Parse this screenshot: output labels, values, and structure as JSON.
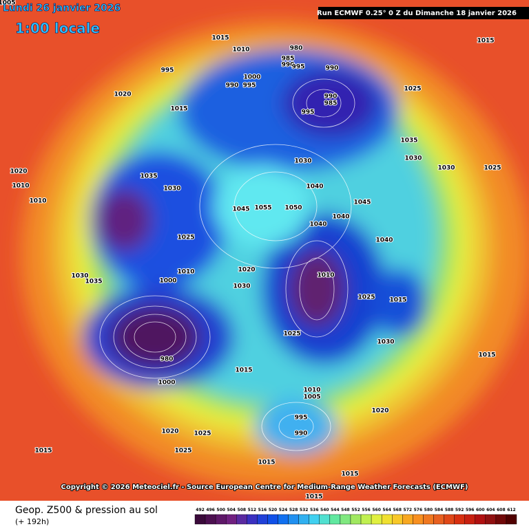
{
  "header": {
    "date": "Lundi 26 janvier 2026",
    "time": "1:00 locale",
    "run": "Run ECMWF 0.25° 0 Z du Dimanche 18 janvier 2026"
  },
  "copyright": "Copyright © 2026 Meteociel.fr - Source European Centre for Medium-Range Weather Forecasts (ECMWF)",
  "footer": {
    "title": "Geop. Z500 & pression au sol",
    "lead": "(+ 192h)"
  },
  "pressure_labels": [
    "1015",
    "1010",
    "980",
    "985",
    "990",
    "995",
    "990",
    "1000",
    "990",
    "995",
    "990",
    "985",
    "995",
    "1020",
    "1015",
    "995",
    "1025",
    "1035",
    "1030",
    "1030",
    "1025",
    "1030",
    "1040",
    "1045",
    "1055",
    "1050",
    "1040",
    "1040",
    "1040",
    "1045",
    "1035",
    "1030",
    "1025",
    "1010",
    "1000",
    "1020",
    "1030",
    "1010",
    "1015",
    "1025",
    "1030",
    "980",
    "1000",
    "1015",
    "1025",
    "1010",
    "1005",
    "995",
    "990",
    "1020",
    "1020",
    "1025",
    "1025",
    "1015",
    "1015",
    "1015",
    "1015",
    "1015",
    "1015",
    "1030",
    "1035",
    "1020",
    "1010",
    "1010",
    "1005"
  ],
  "scale": {
    "values": [
      492,
      496,
      500,
      504,
      508,
      512,
      516,
      520,
      524,
      528,
      532,
      536,
      540,
      544,
      548,
      552,
      556,
      560,
      564,
      568,
      572,
      576,
      580,
      584,
      588,
      592,
      596,
      600,
      604,
      608,
      612
    ],
    "colors": [
      "#3a0a3a",
      "#4c1050",
      "#5e1868",
      "#702080",
      "#5a2aa0",
      "#3a30c0",
      "#2040d8",
      "#1050e8",
      "#1070f0",
      "#2090f0",
      "#30b0f0",
      "#40d0f0",
      "#50e0d0",
      "#60e8a0",
      "#80e880",
      "#a0e860",
      "#c0f050",
      "#e0f040",
      "#f0e030",
      "#f8c828",
      "#f8a820",
      "#f89020",
      "#f07820",
      "#e86020",
      "#e04818",
      "#d83010",
      "#c82010",
      "#b01010",
      "#901010",
      "#700808",
      "#500000"
    ]
  }
}
